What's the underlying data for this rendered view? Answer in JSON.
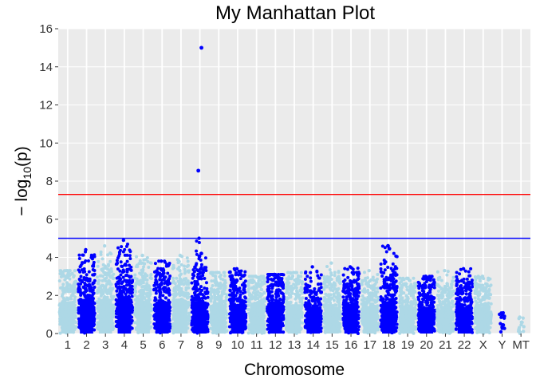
{
  "chart_data": {
    "type": "scatter",
    "title": "My Manhattan Plot",
    "xlabel": "Chromosome",
    "ylabel": "−log10(p)",
    "ylabel_parts": {
      "prefix": "− log",
      "subscript": "10",
      "arg": "(p)"
    },
    "ylim": [
      0,
      16
    ],
    "yticks": [
      0,
      2,
      4,
      6,
      8,
      10,
      12,
      14,
      16
    ],
    "grid": true,
    "colors": {
      "panel": "#EBEBEB",
      "grid": "#FFFFFF",
      "odd": "#ADD8E6",
      "even": "#0000FF",
      "genomewide_line": "#FF0000",
      "suggestive_line": "#0000FF"
    },
    "thresholds": [
      {
        "name": "genome-wide",
        "value": 7.3,
        "color": "#FF0000"
      },
      {
        "name": "suggestive",
        "value": 5.0,
        "color": "#0000FF"
      }
    ],
    "chromosomes": [
      {
        "label": "1",
        "top": 3.3,
        "dense_to": 2.4
      },
      {
        "label": "2",
        "top": 4.4,
        "dense_to": 2.6
      },
      {
        "label": "3",
        "top": 4.6,
        "dense_to": 2.6
      },
      {
        "label": "4",
        "top": 4.9,
        "dense_to": 2.8
      },
      {
        "label": "5",
        "top": 4.1,
        "dense_to": 2.4
      },
      {
        "label": "6",
        "top": 3.8,
        "dense_to": 2.4
      },
      {
        "label": "7",
        "top": 4.1,
        "dense_to": 2.4
      },
      {
        "label": "8",
        "top": 15.0,
        "dense_to": 2.4,
        "hits": [
          15.0,
          8.55,
          4.2,
          4.05
        ]
      },
      {
        "label": "9",
        "top": 3.2,
        "dense_to": 2.2
      },
      {
        "label": "10",
        "top": 3.4,
        "dense_to": 2.2
      },
      {
        "label": "11",
        "top": 3.0,
        "dense_to": 2.2
      },
      {
        "label": "12",
        "top": 3.1,
        "dense_to": 2.4
      },
      {
        "label": "13",
        "top": 3.2,
        "dense_to": 2.2
      },
      {
        "label": "14",
        "top": 3.5,
        "dense_to": 2.0
      },
      {
        "label": "15",
        "top": 3.7,
        "dense_to": 2.0
      },
      {
        "label": "16",
        "top": 3.5,
        "dense_to": 2.2
      },
      {
        "label": "17",
        "top": 3.3,
        "dense_to": 2.0
      },
      {
        "label": "18",
        "top": 4.6,
        "dense_to": 2.4,
        "hits": [
          4.6,
          4.45
        ]
      },
      {
        "label": "19",
        "top": 2.9,
        "dense_to": 2.0
      },
      {
        "label": "20",
        "top": 3.0,
        "dense_to": 2.0
      },
      {
        "label": "21",
        "top": 3.3,
        "dense_to": 1.8
      },
      {
        "label": "22",
        "top": 3.4,
        "dense_to": 2.0
      },
      {
        "label": "X",
        "top": 3.0,
        "dense_to": 2.0
      },
      {
        "label": "Y",
        "top": 1.1,
        "dense_to": 0.5,
        "sparse": true
      },
      {
        "label": "MT",
        "top": 0.9,
        "dense_to": 0.4,
        "sparse": true
      }
    ]
  }
}
